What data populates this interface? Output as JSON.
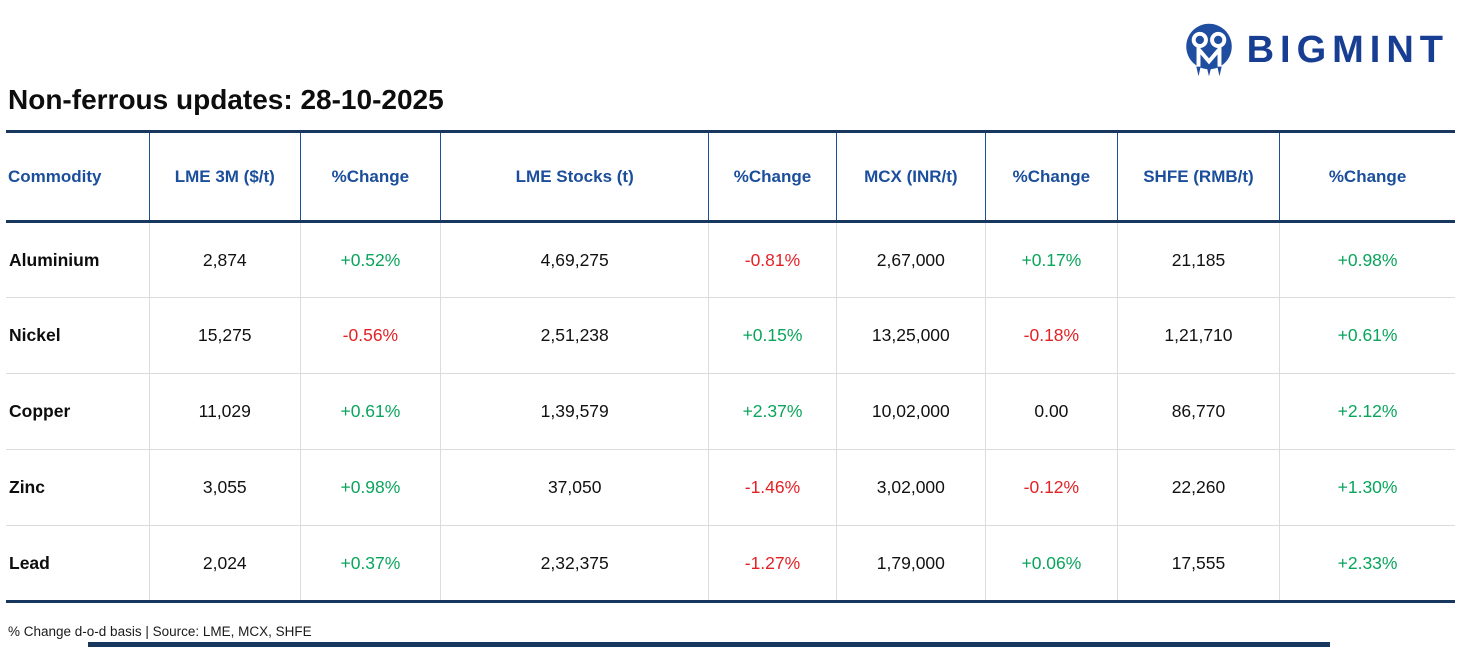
{
  "brand": {
    "name": "BIGMINT"
  },
  "title": "Non-ferrous updates: 28-10-2025",
  "table": {
    "columns": [
      "Commodity",
      "LME 3M ($/t)",
      "%Change",
      "LME Stocks (t)",
      "%Change",
      "MCX (INR/t)",
      "%Change",
      "SHFE (RMB/t)",
      "%Change"
    ],
    "rows": [
      {
        "cells": [
          "Aluminium",
          "2,874",
          "+0.52%",
          "4,69,275",
          "-0.81%",
          "2,67,000",
          "+0.17%",
          "21,185",
          "+0.98%"
        ]
      },
      {
        "cells": [
          "Nickel",
          "15,275",
          "-0.56%",
          "2,51,238",
          "+0.15%",
          "13,25,000",
          "-0.18%",
          "1,21,710",
          "+0.61%"
        ]
      },
      {
        "cells": [
          "Copper",
          "11,029",
          "+0.61%",
          "1,39,579",
          "+2.37%",
          "10,02,000",
          "0.00",
          "86,770",
          "+2.12%"
        ]
      },
      {
        "cells": [
          "Zinc",
          "3,055",
          "+0.98%",
          "37,050",
          "-1.46%",
          "3,02,000",
          "-0.12%",
          "22,260",
          "+1.30%"
        ]
      },
      {
        "cells": [
          "Lead",
          "2,024",
          "+0.37%",
          "2,32,375",
          "-1.27%",
          "1,79,000",
          "+0.06%",
          "17,555",
          "+2.33%"
        ]
      }
    ]
  },
  "footnote": "% Change d-o-d basis | Source: LME, MCX, SHFE",
  "colors": {
    "positive": "#0AA45C",
    "negative": "#E32226",
    "neutral": "#111111",
    "header_text": "#1B4E9B",
    "border_navy": "#17375E",
    "logo_blue": "#1F4DA0",
    "brand_text_blue": "#173E92"
  }
}
